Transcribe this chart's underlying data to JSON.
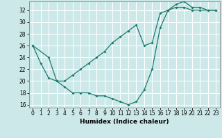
{
  "xlabel": "Humidex (Indice chaleur)",
  "xlim": [
    -0.5,
    23.5
  ],
  "ylim": [
    15.5,
    33.5
  ],
  "xticks": [
    0,
    1,
    2,
    3,
    4,
    5,
    6,
    7,
    8,
    9,
    10,
    11,
    12,
    13,
    14,
    15,
    16,
    17,
    18,
    19,
    20,
    21,
    22,
    23
  ],
  "yticks": [
    16,
    18,
    20,
    22,
    24,
    26,
    28,
    30,
    32
  ],
  "background_color": "#cce8e8",
  "grid_color": "#ffffff",
  "line_color": "#1a7a6e",
  "line1_x": [
    0,
    1,
    2,
    3,
    4,
    5,
    6,
    7,
    8,
    9,
    10,
    11,
    12,
    13,
    14,
    15,
    16,
    17,
    18,
    19,
    20,
    21,
    22,
    23
  ],
  "line1_y": [
    26,
    23,
    20.5,
    20,
    19,
    18,
    18,
    18,
    17.5,
    17.5,
    17,
    16.5,
    16,
    16.5,
    18.5,
    22,
    29,
    32,
    33,
    33.5,
    32.5,
    32.5,
    32,
    32
  ],
  "line2_x": [
    0,
    2,
    3,
    4,
    5,
    6,
    7,
    8,
    9,
    10,
    11,
    12,
    13,
    14,
    15,
    16,
    17,
    18,
    19,
    20,
    21,
    22,
    23
  ],
  "line2_y": [
    26,
    24,
    20,
    20,
    21,
    22,
    23,
    24,
    25,
    26.5,
    27.5,
    28.5,
    29.5,
    26,
    26.5,
    31.5,
    32,
    32.5,
    32.5,
    32,
    32,
    32,
    32
  ]
}
